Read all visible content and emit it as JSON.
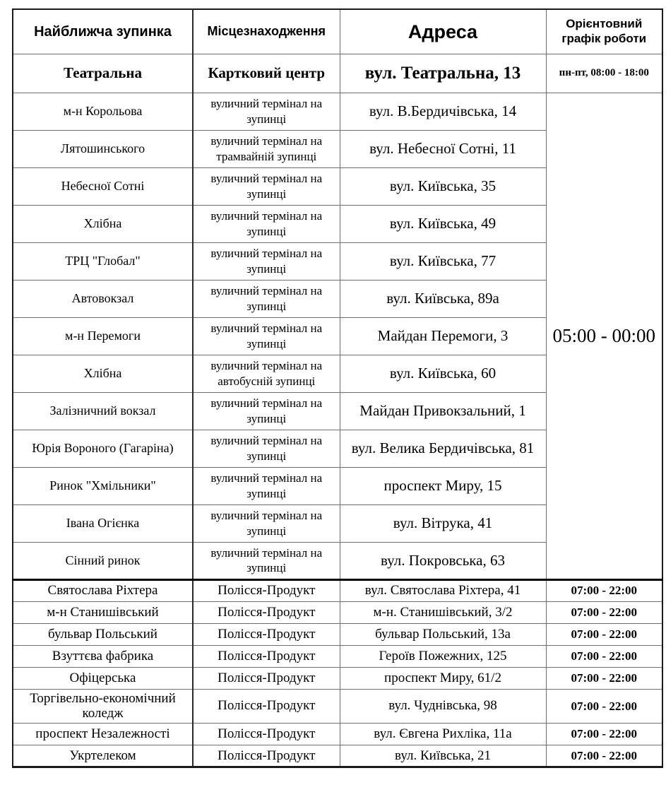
{
  "table": {
    "columns": [
      "Найближча зупинка",
      "Місцезнаходження",
      "Адреса",
      "Орієнтовний графік роботи"
    ],
    "featured_row": {
      "stop": "Театральна",
      "location": "Картковий центр",
      "address": "вул. Театральна, 13",
      "hours": "пн-пт, 08:00 - 18:00"
    },
    "terminal_section": {
      "hours": "05:00 - 00:00",
      "rows": [
        {
          "stop": "м-н Корольова",
          "location": "вуличний термінал на зупинці",
          "address": "вул. В.Бердичівська, 14"
        },
        {
          "stop": "Лятошинського",
          "location": "вуличний термінал на трамвайній зупинці",
          "address": "вул. Небесної Сотні, 11"
        },
        {
          "stop": "Небесної Сотні",
          "location": "вуличний термінал на зупинці",
          "address": "вул. Київська, 35"
        },
        {
          "stop": "Хлібна",
          "location": "вуличний термінал на зупинці",
          "address": "вул. Київська, 49"
        },
        {
          "stop": "ТРЦ \"Глобал\"",
          "location": "вуличний термінал на зупинці",
          "address": "вул. Київська, 77"
        },
        {
          "stop": "Автовокзал",
          "location": "вуличний термінал на зупинці",
          "address": "вул. Київська, 89а"
        },
        {
          "stop": "м-н Перемоги",
          "location": "вуличний термінал на зупинці",
          "address": "Майдан Перемоги, 3"
        },
        {
          "stop": "Хлібна",
          "location": "вуличний термінал на автобусній зупинці",
          "address": "вул. Київська, 60"
        },
        {
          "stop": "Залізничний вокзал",
          "location": "вуличний термінал на зупинці",
          "address": "Майдан Привокзальний, 1"
        },
        {
          "stop": "Юрія Вороного (Гагаріна)",
          "location": "вуличний термінал на зупинці",
          "address": "вул. Велика Бердичівська, 81"
        },
        {
          "stop": "Ринок \"Хмільники\"",
          "location": "вуличний термінал на зупинці",
          "address": "проспект Миру, 15"
        },
        {
          "stop": "Івана Огієнка",
          "location": "вуличний термінал на зупинці",
          "address": "вул. Вітрука, 41"
        },
        {
          "stop": "Сінний ринок",
          "location": "вуличний термінал на зупинці",
          "address": "вул. Покровська, 63"
        }
      ]
    },
    "store_section": {
      "rows": [
        {
          "stop": "Святослава Ріхтера",
          "location": "Полісся-Продукт",
          "address": "вул. Святослава Ріхтера, 41",
          "hours": "07:00 - 22:00"
        },
        {
          "stop": "м-н Станишівський",
          "location": "Полісся-Продукт",
          "address": "м-н. Станишівський, 3/2",
          "hours": "07:00 - 22:00"
        },
        {
          "stop": "бульвар Польський",
          "location": "Полісся-Продукт",
          "address": "бульвар Польський, 13а",
          "hours": "07:00 - 22:00"
        },
        {
          "stop": "Взуттєва фабрика",
          "location": "Полісся-Продукт",
          "address": "Героїв Пожежних, 125",
          "hours": "07:00 - 22:00"
        },
        {
          "stop": "Офіцерська",
          "location": "Полісся-Продукт",
          "address": "проспект Миру, 61/2",
          "hours": "07:00 - 22:00"
        },
        {
          "stop": "Торгівельно-економічний коледж",
          "location": "Полісся-Продукт",
          "address": "вул. Чуднівська, 98",
          "hours": "07:00 - 22:00"
        },
        {
          "stop": "проспект Незалежності",
          "location": "Полісся-Продукт",
          "address": "вул. Євгена Рихліка, 11а",
          "hours": "07:00 - 22:00"
        },
        {
          "stop": "Укртелеком",
          "location": "Полісся-Продукт",
          "address": "вул. Київська, 21",
          "hours": "07:00 - 22:00"
        }
      ]
    }
  }
}
